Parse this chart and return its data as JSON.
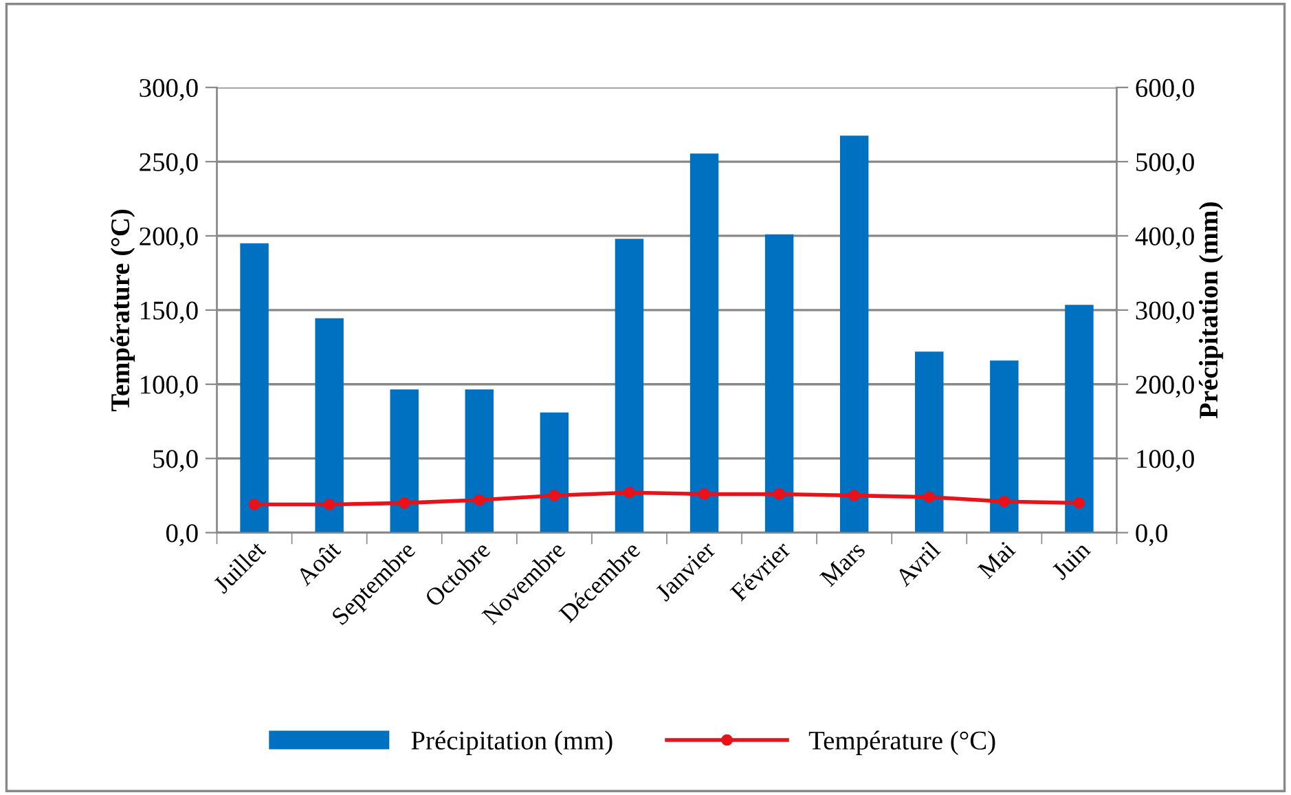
{
  "chart_data": {
    "type": "bar",
    "ylabel": "Température (°C)",
    "y2label": "Précipitation (mm)",
    "categories": [
      "Juillet",
      "Août",
      "Septembre",
      "Octobre",
      "Novembre",
      "Décembre",
      "Janvier",
      "Février",
      "Mars",
      "Avril",
      "Mai",
      "Juin"
    ],
    "series": [
      {
        "name": "Précipitation (mm)",
        "axis": "y2",
        "color": "#0070c0",
        "values": [
          390,
          289,
          193,
          193,
          162,
          396,
          511,
          402,
          535,
          244,
          232,
          307
        ]
      },
      {
        "name": "Température (°C)",
        "type": "line",
        "axis": "y",
        "color": "#e8121b",
        "marker": "circle",
        "values": [
          19,
          19,
          20,
          22,
          25,
          27,
          26,
          26,
          25,
          24,
          21,
          20
        ]
      }
    ],
    "ylim": [
      0,
      300
    ],
    "yticks": [
      {
        "value": 0,
        "label": "0,0"
      },
      {
        "value": 50,
        "label": "50,0"
      },
      {
        "value": 100,
        "label": "100,0"
      },
      {
        "value": 150,
        "label": "150,0"
      },
      {
        "value": 200,
        "label": "200,0"
      },
      {
        "value": 250,
        "label": "250,0"
      },
      {
        "value": 300,
        "label": "300,0"
      }
    ],
    "y2lim": [
      0,
      600
    ],
    "y2ticks": [
      {
        "value": 0,
        "label": "0,0"
      },
      {
        "value": 100,
        "label": "100,0"
      },
      {
        "value": 200,
        "label": "200,0"
      },
      {
        "value": 300,
        "label": "300,0"
      },
      {
        "value": 400,
        "label": "400,0"
      },
      {
        "value": 500,
        "label": "500,0"
      },
      {
        "value": 600,
        "label": "600,0"
      }
    ],
    "grid": "y",
    "legend": "bottom"
  }
}
